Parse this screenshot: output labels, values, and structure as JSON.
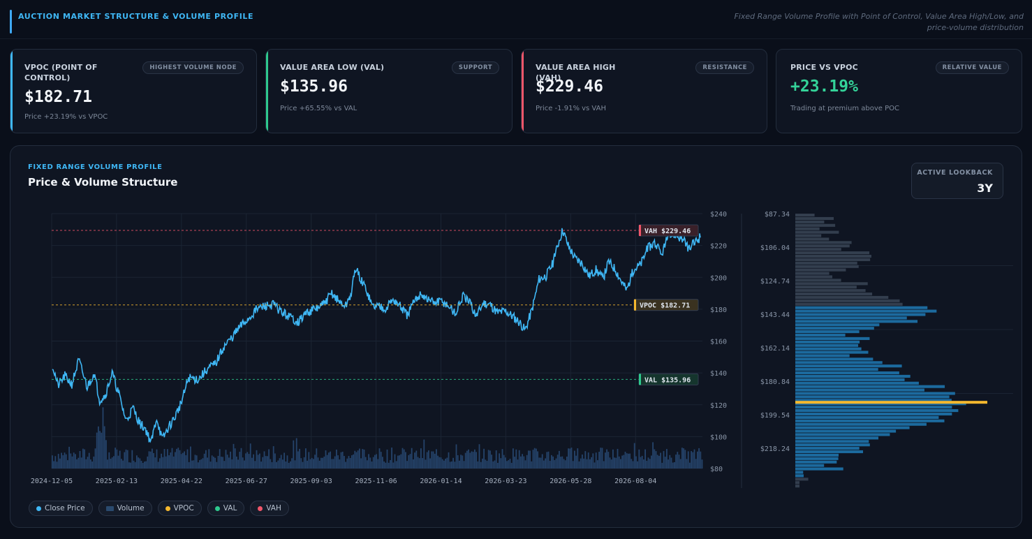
{
  "header": {
    "title": "AUCTION MARKET STRUCTURE & VOLUME PROFILE",
    "subtitle": "Fixed Range Volume Profile with Point of Control, Value Area High/Low, and price-volume distribution"
  },
  "cards": [
    {
      "label": "VPOC (POINT OF CONTROL)",
      "badge": "HIGHEST VOLUME NODE",
      "value": "$182.71",
      "note": "Price +23.19% vs VPOC",
      "accent": "#3fb7f5",
      "value_color": "#f2f5f9"
    },
    {
      "label": "VALUE AREA LOW (VAL)",
      "badge": "SUPPORT",
      "value": "$135.96",
      "note": "Price +65.55% vs VAL",
      "accent": "#2ec98e",
      "value_color": "#f2f5f9"
    },
    {
      "label": "VALUE AREA HIGH (VAH)",
      "badge": "RESISTANCE",
      "value": "$229.46",
      "note": "Price -1.91% vs VAH",
      "accent": "#f0566a",
      "value_color": "#f2f5f9"
    },
    {
      "label": "PRICE VS VPOC",
      "badge": "RELATIVE VALUE",
      "value": "+23.19%",
      "note": "Trading at premium above POC",
      "accent": "",
      "value_color": "#34d399"
    }
  ],
  "panel": {
    "kicker": "FIXED RANGE VOLUME PROFILE",
    "title": "Price & Volume Structure",
    "lookback_label": "ACTIVE LOOKBACK",
    "lookback_value": "3Y"
  },
  "legend": [
    {
      "label": "Close Price",
      "color": "#3fb7f5",
      "shape": "dot"
    },
    {
      "label": "Volume",
      "color": "#2a4a6e",
      "shape": "square"
    },
    {
      "label": "VPOC",
      "color": "#f5b82e",
      "shape": "dot"
    },
    {
      "label": "VAL",
      "color": "#2ec98e",
      "shape": "dot"
    },
    {
      "label": "VAH",
      "color": "#f0566a",
      "shape": "dot"
    }
  ],
  "colors": {
    "price": "#3fb7f5",
    "volume": "#25436a",
    "vpoc": "#f5b82e",
    "val": "#2ec98e",
    "vah": "#f0566a",
    "grid": "#1b2433"
  },
  "chart_data": [
    {
      "type": "line",
      "x_tick_labels": [
        "2024-12-05",
        "2025-02-13",
        "2025-04-22",
        "2025-06-27",
        "2025-09-03",
        "2025-11-06",
        "2026-01-14",
        "2026-03-23",
        "2026-05-28",
        "2026-08-04"
      ],
      "y_tick_labels": [
        "$240",
        "$220",
        "$200",
        "$180",
        "$160",
        "$140",
        "$120",
        "$100",
        "$80"
      ],
      "ylim": [
        80,
        240
      ],
      "grid": true,
      "series": [
        {
          "name": "Close Price",
          "anchors": [
            [
              0,
              145
            ],
            [
              8,
              132
            ],
            [
              18,
              138
            ],
            [
              28,
              133
            ],
            [
              38,
              148
            ],
            [
              50,
              131
            ],
            [
              60,
              140
            ],
            [
              68,
              123
            ],
            [
              76,
              126
            ],
            [
              86,
              140
            ],
            [
              96,
              126
            ],
            [
              106,
              110
            ],
            [
              116,
              118
            ],
            [
              126,
              108
            ],
            [
              134,
              105
            ],
            [
              142,
              96
            ],
            [
              150,
              112
            ],
            [
              158,
              98
            ],
            [
              166,
              105
            ],
            [
              176,
              112
            ],
            [
              186,
              122
            ],
            [
              196,
              137
            ],
            [
              210,
              136
            ],
            [
              222,
              142
            ],
            [
              235,
              146
            ],
            [
              246,
              156
            ],
            [
              258,
              162
            ],
            [
              270,
              169
            ],
            [
              282,
              174
            ],
            [
              294,
              180
            ],
            [
              306,
              182
            ],
            [
              318,
              183
            ],
            [
              330,
              178
            ],
            [
              342,
              175
            ],
            [
              354,
              172
            ],
            [
              366,
              178
            ],
            [
              378,
              180
            ],
            [
              390,
              183
            ],
            [
              402,
              190
            ],
            [
              414,
              184
            ],
            [
              422,
              182
            ],
            [
              430,
              190
            ],
            [
              436,
              206
            ],
            [
              444,
              198
            ],
            [
              452,
              192
            ],
            [
              460,
              182
            ],
            [
              470,
              182
            ],
            [
              480,
              181
            ],
            [
              490,
              186
            ],
            [
              500,
              182
            ],
            [
              510,
              176
            ],
            [
              520,
              184
            ],
            [
              530,
              190
            ],
            [
              540,
              186
            ],
            [
              550,
              184
            ],
            [
              560,
              185
            ],
            [
              570,
              182
            ],
            [
              580,
              177
            ],
            [
              590,
              188
            ],
            [
              600,
              184
            ],
            [
              610,
              176
            ],
            [
              620,
              184
            ],
            [
              630,
              183
            ],
            [
              640,
              178
            ],
            [
              652,
              179
            ],
            [
              664,
              175
            ],
            [
              672,
              172
            ],
            [
              680,
              167
            ],
            [
              690,
              180
            ],
            [
              700,
              199
            ],
            [
              710,
              201
            ],
            [
              720,
              209
            ],
            [
              728,
              222
            ],
            [
              734,
              230
            ],
            [
              742,
              220
            ],
            [
              752,
              212
            ],
            [
              762,
              209
            ],
            [
              772,
              201
            ],
            [
              782,
              205
            ],
            [
              792,
              199
            ],
            [
              800,
              210
            ],
            [
              810,
              205
            ],
            [
              818,
              198
            ],
            [
              826,
              192
            ],
            [
              836,
              205
            ],
            [
              846,
              208
            ],
            [
              856,
              218
            ],
            [
              866,
              222
            ],
            [
              876,
              214
            ],
            [
              886,
              226
            ],
            [
              896,
              227
            ],
            [
              906,
              224
            ],
            [
              916,
              218
            ],
            [
              926,
              223
            ],
            [
              932,
              225
            ]
          ]
        },
        {
          "name": "Volume",
          "baseline": 80
        }
      ],
      "reference_lines": [
        {
          "name": "VAH",
          "label": "VAH $229.46",
          "value": 229.46
        },
        {
          "name": "VPOC",
          "label": "VPOC $182.71",
          "value": 182.71
        },
        {
          "name": "VAL",
          "label": "VAL $135.96",
          "value": 135.96
        }
      ]
    },
    {
      "type": "bar",
      "orientation": "horizontal",
      "y_tick_labels": [
        "$87.34",
        "$106.04",
        "$124.74",
        "$143.44",
        "$162.14",
        "$180.84",
        "$199.54",
        "$218.24"
      ],
      "ylim": [
        87.34,
        237
      ],
      "bin_count": 80,
      "value_area": [
        135.96,
        229.46
      ],
      "poc": 182.71
    }
  ]
}
